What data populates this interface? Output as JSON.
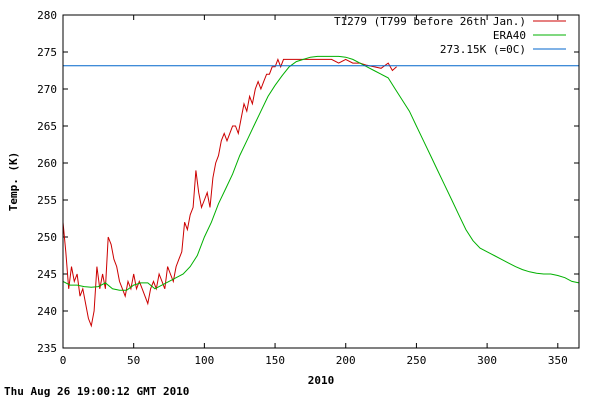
{
  "chart_data": {
    "type": "line",
    "title": "",
    "xlabel": "2010",
    "ylabel": "Temp. (K)",
    "xlim": [
      0,
      365
    ],
    "ylim": [
      235,
      280
    ],
    "xticks": [
      0,
      50,
      100,
      150,
      200,
      250,
      300,
      350
    ],
    "yticks": [
      235,
      240,
      245,
      250,
      255,
      260,
      265,
      270,
      275,
      280
    ],
    "grid": false,
    "legend_position": "top-right",
    "series": [
      {
        "name": "T1279 (T799 before 26th Jan.)",
        "color": "#cc0000",
        "x": [
          0,
          2,
          4,
          6,
          8,
          10,
          12,
          14,
          16,
          18,
          20,
          22,
          24,
          26,
          28,
          30,
          32,
          34,
          36,
          38,
          40,
          42,
          44,
          46,
          48,
          50,
          52,
          54,
          56,
          58,
          60,
          62,
          64,
          66,
          68,
          70,
          72,
          74,
          76,
          78,
          80,
          82,
          84,
          86,
          88,
          90,
          92,
          94,
          96,
          98,
          100,
          102,
          104,
          106,
          108,
          110,
          112,
          114,
          116,
          118,
          120,
          122,
          124,
          126,
          128,
          130,
          132,
          134,
          136,
          138,
          140,
          142,
          144,
          146,
          148,
          150,
          152,
          154,
          156,
          158,
          160,
          162,
          164,
          166,
          168,
          170,
          172,
          174,
          176,
          178,
          180,
          185,
          190,
          195,
          200,
          205,
          210,
          215,
          220,
          225,
          230,
          233,
          236
        ],
        "y": [
          252,
          248,
          243,
          246,
          244,
          245,
          242,
          243,
          241,
          239,
          238,
          240,
          246,
          243,
          245,
          243,
          250,
          249,
          247,
          246,
          244,
          243,
          242,
          244,
          243,
          245,
          243,
          244,
          243,
          242,
          241,
          243,
          244,
          243,
          245,
          244,
          243,
          246,
          245,
          244,
          246,
          247,
          248,
          252,
          251,
          253,
          254,
          259,
          256,
          254,
          255,
          256,
          254,
          258,
          260,
          261,
          263,
          264,
          263,
          264,
          265,
          265,
          264,
          266,
          268,
          267,
          269,
          268,
          270,
          271,
          270,
          271,
          272,
          272,
          273,
          273,
          274,
          273,
          274,
          274,
          274,
          274,
          274,
          274,
          274,
          274,
          274,
          274,
          274,
          274,
          274,
          274,
          274,
          273.5,
          274,
          273.5,
          273.5,
          273.2,
          273,
          272.8,
          273.5,
          272.5,
          273
        ]
      },
      {
        "name": "ERA40",
        "color": "#00b000",
        "x": [
          0,
          5,
          10,
          15,
          20,
          25,
          30,
          35,
          40,
          45,
          50,
          55,
          60,
          65,
          70,
          75,
          80,
          85,
          90,
          95,
          100,
          105,
          110,
          115,
          120,
          125,
          130,
          135,
          140,
          145,
          150,
          155,
          160,
          165,
          170,
          175,
          180,
          185,
          190,
          195,
          200,
          205,
          210,
          215,
          220,
          225,
          230,
          235,
          240,
          245,
          250,
          255,
          260,
          265,
          270,
          275,
          280,
          285,
          290,
          295,
          300,
          305,
          310,
          315,
          320,
          325,
          330,
          335,
          340,
          345,
          350,
          355,
          360,
          365
        ],
        "y": [
          244,
          243.5,
          243.5,
          243.3,
          243.2,
          243.3,
          243.8,
          243,
          242.8,
          242.8,
          243.5,
          243.8,
          243.8,
          243,
          243.5,
          244,
          244.5,
          245,
          246,
          247.5,
          250,
          252,
          254.5,
          256.5,
          258.5,
          261,
          263,
          265,
          267,
          269,
          270.5,
          271.8,
          273,
          273.7,
          274,
          274.3,
          274.4,
          274.4,
          274.4,
          274.4,
          274.3,
          274,
          273.5,
          273,
          272.5,
          272,
          271.5,
          270,
          268.5,
          267,
          265,
          263,
          261,
          259,
          257,
          255,
          253,
          251,
          249.5,
          248.5,
          248,
          247.5,
          247,
          246.5,
          246,
          245.6,
          245.3,
          245.1,
          245,
          245,
          244.8,
          244.5,
          244,
          243.8
        ]
      },
      {
        "name": "273.15K (=0C)",
        "color": "#0066cc",
        "x": [
          0,
          365
        ],
        "y": [
          273.15,
          273.15
        ]
      }
    ]
  },
  "footer": {
    "timestamp": "Thu Aug 26 19:00:12 GMT 2010"
  }
}
